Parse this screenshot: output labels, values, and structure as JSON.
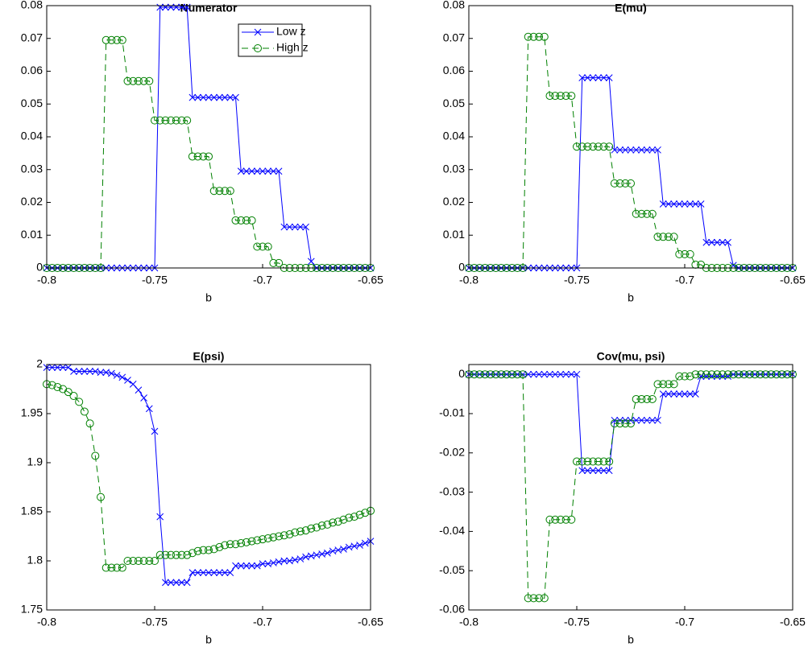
{
  "chart_data": [
    {
      "type": "line",
      "title": "Numerator",
      "xlabel": "b",
      "x": [
        -0.8,
        -0.7975,
        -0.795,
        -0.7925,
        -0.79,
        -0.7875,
        -0.785,
        -0.7825,
        -0.78,
        -0.7775,
        -0.775,
        -0.7725,
        -0.77,
        -0.7675,
        -0.765,
        -0.7625,
        -0.76,
        -0.7575,
        -0.755,
        -0.7525,
        -0.75,
        -0.7475,
        -0.745,
        -0.7425,
        -0.74,
        -0.7375,
        -0.735,
        -0.7325,
        -0.73,
        -0.7275,
        -0.725,
        -0.7225,
        -0.72,
        -0.7175,
        -0.715,
        -0.7125,
        -0.71,
        -0.7075,
        -0.705,
        -0.7025,
        -0.7,
        -0.6975,
        -0.695,
        -0.6925,
        -0.69,
        -0.6875,
        -0.685,
        -0.6825,
        -0.68,
        -0.6775,
        -0.675,
        -0.6725,
        -0.67,
        -0.6675,
        -0.665,
        -0.6625,
        -0.66,
        -0.6575,
        -0.655,
        -0.6525,
        -0.65
      ],
      "xlim": [
        -0.8,
        -0.65
      ],
      "xticks": [
        -0.8,
        -0.75,
        -0.7,
        -0.65
      ],
      "ylim": [
        0,
        0.08
      ],
      "yticks": [
        0,
        0.01,
        0.02,
        0.03,
        0.04,
        0.05,
        0.06,
        0.07,
        0.08
      ],
      "grid": false,
      "legend": "upper right",
      "series": [
        {
          "name": "Low z",
          "color": "#0000ff",
          "marker": "x",
          "linestyle": "solid",
          "values": [
            0,
            0,
            0,
            0,
            0,
            0,
            0,
            0,
            0,
            0,
            0,
            0,
            0,
            0,
            0,
            0,
            0,
            0,
            0,
            0,
            0,
            0.0795,
            0.0795,
            0.0795,
            0.0795,
            0.0795,
            0.0795,
            0.052,
            0.052,
            0.052,
            0.052,
            0.052,
            0.052,
            0.052,
            0.052,
            0.052,
            0.0295,
            0.0295,
            0.0295,
            0.0295,
            0.0295,
            0.0295,
            0.0295,
            0.0295,
            0.0125,
            0.0125,
            0.0125,
            0.0125,
            0.0125,
            0.002,
            0,
            0,
            0,
            0,
            0,
            0,
            0,
            0,
            0,
            0,
            0
          ]
        },
        {
          "name": "High z",
          "color": "#008000",
          "marker": "o",
          "linestyle": "dashed",
          "values": [
            0,
            0,
            0,
            0,
            0,
            0,
            0,
            0,
            0,
            0,
            0,
            0.0695,
            0.0695,
            0.0695,
            0.0695,
            0.057,
            0.057,
            0.057,
            0.057,
            0.057,
            0.045,
            0.045,
            0.045,
            0.045,
            0.045,
            0.045,
            0.045,
            0.034,
            0.034,
            0.034,
            0.034,
            0.0235,
            0.0235,
            0.0235,
            0.0235,
            0.0145,
            0.0145,
            0.0145,
            0.0145,
            0.0065,
            0.0065,
            0.0065,
            0.0015,
            0.0015,
            0,
            0,
            0,
            0,
            0,
            0,
            0,
            0,
            0,
            0,
            0,
            0,
            0,
            0,
            0,
            0,
            0
          ]
        }
      ]
    },
    {
      "type": "line",
      "title": "E(mu)",
      "xlabel": "b",
      "x": [
        -0.8,
        -0.7975,
        -0.795,
        -0.7925,
        -0.79,
        -0.7875,
        -0.785,
        -0.7825,
        -0.78,
        -0.7775,
        -0.775,
        -0.7725,
        -0.77,
        -0.7675,
        -0.765,
        -0.7625,
        -0.76,
        -0.7575,
        -0.755,
        -0.7525,
        -0.75,
        -0.7475,
        -0.745,
        -0.7425,
        -0.74,
        -0.7375,
        -0.735,
        -0.7325,
        -0.73,
        -0.7275,
        -0.725,
        -0.7225,
        -0.72,
        -0.7175,
        -0.715,
        -0.7125,
        -0.71,
        -0.7075,
        -0.705,
        -0.7025,
        -0.7,
        -0.6975,
        -0.695,
        -0.6925,
        -0.69,
        -0.6875,
        -0.685,
        -0.6825,
        -0.68,
        -0.6775,
        -0.675,
        -0.6725,
        -0.67,
        -0.6675,
        -0.665,
        -0.6625,
        -0.66,
        -0.6575,
        -0.655,
        -0.6525,
        -0.65
      ],
      "xlim": [
        -0.8,
        -0.65
      ],
      "xticks": [
        -0.8,
        -0.75,
        -0.7,
        -0.65
      ],
      "ylim": [
        0,
        0.08
      ],
      "yticks": [
        0,
        0.01,
        0.02,
        0.03,
        0.04,
        0.05,
        0.06,
        0.07,
        0.08
      ],
      "grid": false,
      "series": [
        {
          "color": "#0000ff",
          "marker": "x",
          "linestyle": "solid",
          "values": [
            0,
            0,
            0,
            0,
            0,
            0,
            0,
            0,
            0,
            0,
            0,
            0,
            0,
            0,
            0,
            0,
            0,
            0,
            0,
            0,
            0,
            0.058,
            0.058,
            0.058,
            0.058,
            0.058,
            0.058,
            0.036,
            0.036,
            0.036,
            0.036,
            0.036,
            0.036,
            0.036,
            0.036,
            0.036,
            0.0195,
            0.0195,
            0.0195,
            0.0195,
            0.0195,
            0.0195,
            0.0195,
            0.0195,
            0.0078,
            0.0078,
            0.0078,
            0.0078,
            0.0078,
            0.0008,
            0,
            0,
            0,
            0,
            0,
            0,
            0,
            0,
            0,
            0,
            0
          ]
        },
        {
          "color": "#008000",
          "marker": "o",
          "linestyle": "dashed",
          "values": [
            0,
            0,
            0,
            0,
            0,
            0,
            0,
            0,
            0,
            0,
            0,
            0.0705,
            0.0705,
            0.0705,
            0.0705,
            0.0525,
            0.0525,
            0.0525,
            0.0525,
            0.0525,
            0.037,
            0.037,
            0.037,
            0.037,
            0.037,
            0.037,
            0.037,
            0.0258,
            0.0258,
            0.0258,
            0.0258,
            0.0165,
            0.0165,
            0.0165,
            0.0165,
            0.0095,
            0.0095,
            0.0095,
            0.0095,
            0.0042,
            0.0042,
            0.0042,
            0.001,
            0.001,
            0,
            0,
            0,
            0,
            0,
            0,
            0,
            0,
            0,
            0,
            0,
            0,
            0,
            0,
            0,
            0,
            0
          ]
        }
      ]
    },
    {
      "type": "line",
      "title": "E(psi)",
      "xlabel": "b",
      "x": [
        -0.8,
        -0.7975,
        -0.795,
        -0.7925,
        -0.79,
        -0.7875,
        -0.785,
        -0.7825,
        -0.78,
        -0.7775,
        -0.775,
        -0.7725,
        -0.77,
        -0.7675,
        -0.765,
        -0.7625,
        -0.76,
        -0.7575,
        -0.755,
        -0.7525,
        -0.75,
        -0.7475,
        -0.745,
        -0.7425,
        -0.74,
        -0.7375,
        -0.735,
        -0.7325,
        -0.73,
        -0.7275,
        -0.725,
        -0.7225,
        -0.72,
        -0.7175,
        -0.715,
        -0.7125,
        -0.71,
        -0.7075,
        -0.705,
        -0.7025,
        -0.7,
        -0.6975,
        -0.695,
        -0.6925,
        -0.69,
        -0.6875,
        -0.685,
        -0.6825,
        -0.68,
        -0.6775,
        -0.675,
        -0.6725,
        -0.67,
        -0.6675,
        -0.665,
        -0.6625,
        -0.66,
        -0.6575,
        -0.655,
        -0.6525,
        -0.65
      ],
      "xlim": [
        -0.8,
        -0.65
      ],
      "xticks": [
        -0.8,
        -0.75,
        -0.7,
        -0.65
      ],
      "ylim": [
        1.75,
        2
      ],
      "yticks": [
        1.75,
        1.8,
        1.85,
        1.9,
        1.95,
        2
      ],
      "grid": false,
      "series": [
        {
          "color": "#0000ff",
          "marker": "x",
          "linestyle": "solid",
          "values": [
            1.997,
            1.997,
            1.997,
            1.997,
            1.997,
            1.993,
            1.993,
            1.993,
            1.993,
            1.993,
            1.992,
            1.992,
            1.991,
            1.989,
            1.987,
            1.984,
            1.98,
            1.974,
            1.966,
            1.955,
            1.932,
            1.845,
            1.778,
            1.778,
            1.778,
            1.778,
            1.778,
            1.788,
            1.788,
            1.788,
            1.788,
            1.788,
            1.788,
            1.788,
            1.788,
            1.795,
            1.795,
            1.795,
            1.795,
            1.795,
            1.797,
            1.797,
            1.798,
            1.799,
            1.8,
            1.8,
            1.801,
            1.802,
            1.804,
            1.805,
            1.806,
            1.807,
            1.808,
            1.81,
            1.811,
            1.812,
            1.814,
            1.815,
            1.816,
            1.818,
            1.82
          ]
        },
        {
          "color": "#008000",
          "marker": "o",
          "linestyle": "dashed",
          "values": [
            1.98,
            1.979,
            1.977,
            1.975,
            1.972,
            1.968,
            1.962,
            1.952,
            1.94,
            1.907,
            1.865,
            1.793,
            1.793,
            1.793,
            1.793,
            1.8,
            1.8,
            1.8,
            1.8,
            1.8,
            1.8,
            1.806,
            1.806,
            1.806,
            1.806,
            1.806,
            1.806,
            1.808,
            1.81,
            1.811,
            1.811,
            1.812,
            1.814,
            1.816,
            1.817,
            1.817,
            1.818,
            1.819,
            1.82,
            1.821,
            1.822,
            1.823,
            1.824,
            1.825,
            1.826,
            1.827,
            1.829,
            1.83,
            1.831,
            1.833,
            1.834,
            1.836,
            1.837,
            1.839,
            1.84,
            1.842,
            1.844,
            1.845,
            1.847,
            1.849,
            1.851
          ]
        }
      ]
    },
    {
      "type": "line",
      "title": "Cov(mu, psi)",
      "xlabel": "b",
      "x": [
        -0.8,
        -0.7975,
        -0.795,
        -0.7925,
        -0.79,
        -0.7875,
        -0.785,
        -0.7825,
        -0.78,
        -0.7775,
        -0.775,
        -0.7725,
        -0.77,
        -0.7675,
        -0.765,
        -0.7625,
        -0.76,
        -0.7575,
        -0.755,
        -0.7525,
        -0.75,
        -0.7475,
        -0.745,
        -0.7425,
        -0.74,
        -0.7375,
        -0.735,
        -0.7325,
        -0.73,
        -0.7275,
        -0.725,
        -0.7225,
        -0.72,
        -0.7175,
        -0.715,
        -0.7125,
        -0.71,
        -0.7075,
        -0.705,
        -0.7025,
        -0.7,
        -0.6975,
        -0.695,
        -0.6925,
        -0.69,
        -0.6875,
        -0.685,
        -0.6825,
        -0.68,
        -0.6775,
        -0.675,
        -0.6725,
        -0.67,
        -0.6675,
        -0.665,
        -0.6625,
        -0.66,
        -0.6575,
        -0.655,
        -0.6525,
        -0.65
      ],
      "xlim": [
        -0.8,
        -0.65
      ],
      "xticks": [
        -0.8,
        -0.75,
        -0.7,
        -0.65
      ],
      "ylim": [
        -0.06,
        0.0025
      ],
      "yticks": [
        -0.06,
        -0.05,
        -0.04,
        -0.03,
        -0.02,
        -0.01,
        0
      ],
      "grid": false,
      "series": [
        {
          "color": "#0000ff",
          "marker": "x",
          "linestyle": "solid",
          "values": [
            0,
            0,
            0,
            0,
            0,
            0,
            0,
            0,
            0,
            0,
            0,
            0,
            0,
            0,
            0,
            0,
            0,
            0,
            0,
            0,
            0,
            -0.0245,
            -0.0245,
            -0.0245,
            -0.0245,
            -0.0245,
            -0.0245,
            -0.0117,
            -0.0117,
            -0.0117,
            -0.0117,
            -0.0117,
            -0.0117,
            -0.0117,
            -0.0117,
            -0.0117,
            -0.005,
            -0.005,
            -0.005,
            -0.005,
            -0.005,
            -0.005,
            -0.005,
            -0.0005,
            -0.0005,
            -0.0005,
            -0.0005,
            -0.0005,
            -0.0005,
            0,
            0,
            0,
            0,
            0,
            0,
            0,
            0,
            0,
            0,
            0,
            0
          ]
        },
        {
          "color": "#008000",
          "marker": "o",
          "linestyle": "dashed",
          "values": [
            0,
            0,
            0,
            0,
            0,
            0,
            0,
            0,
            0,
            0,
            0,
            -0.057,
            -0.057,
            -0.057,
            -0.057,
            -0.037,
            -0.037,
            -0.037,
            -0.037,
            -0.037,
            -0.0222,
            -0.0222,
            -0.0222,
            -0.0222,
            -0.0222,
            -0.0222,
            -0.0222,
            -0.0125,
            -0.0125,
            -0.0125,
            -0.0125,
            -0.0063,
            -0.0063,
            -0.0063,
            -0.0063,
            -0.0025,
            -0.0025,
            -0.0025,
            -0.0025,
            -0.0005,
            -0.0005,
            -0.0005,
            0,
            0,
            0,
            0,
            0,
            0,
            0,
            0,
            0,
            0,
            0,
            0,
            0,
            0,
            0,
            0,
            0,
            0,
            0
          ]
        }
      ]
    }
  ]
}
